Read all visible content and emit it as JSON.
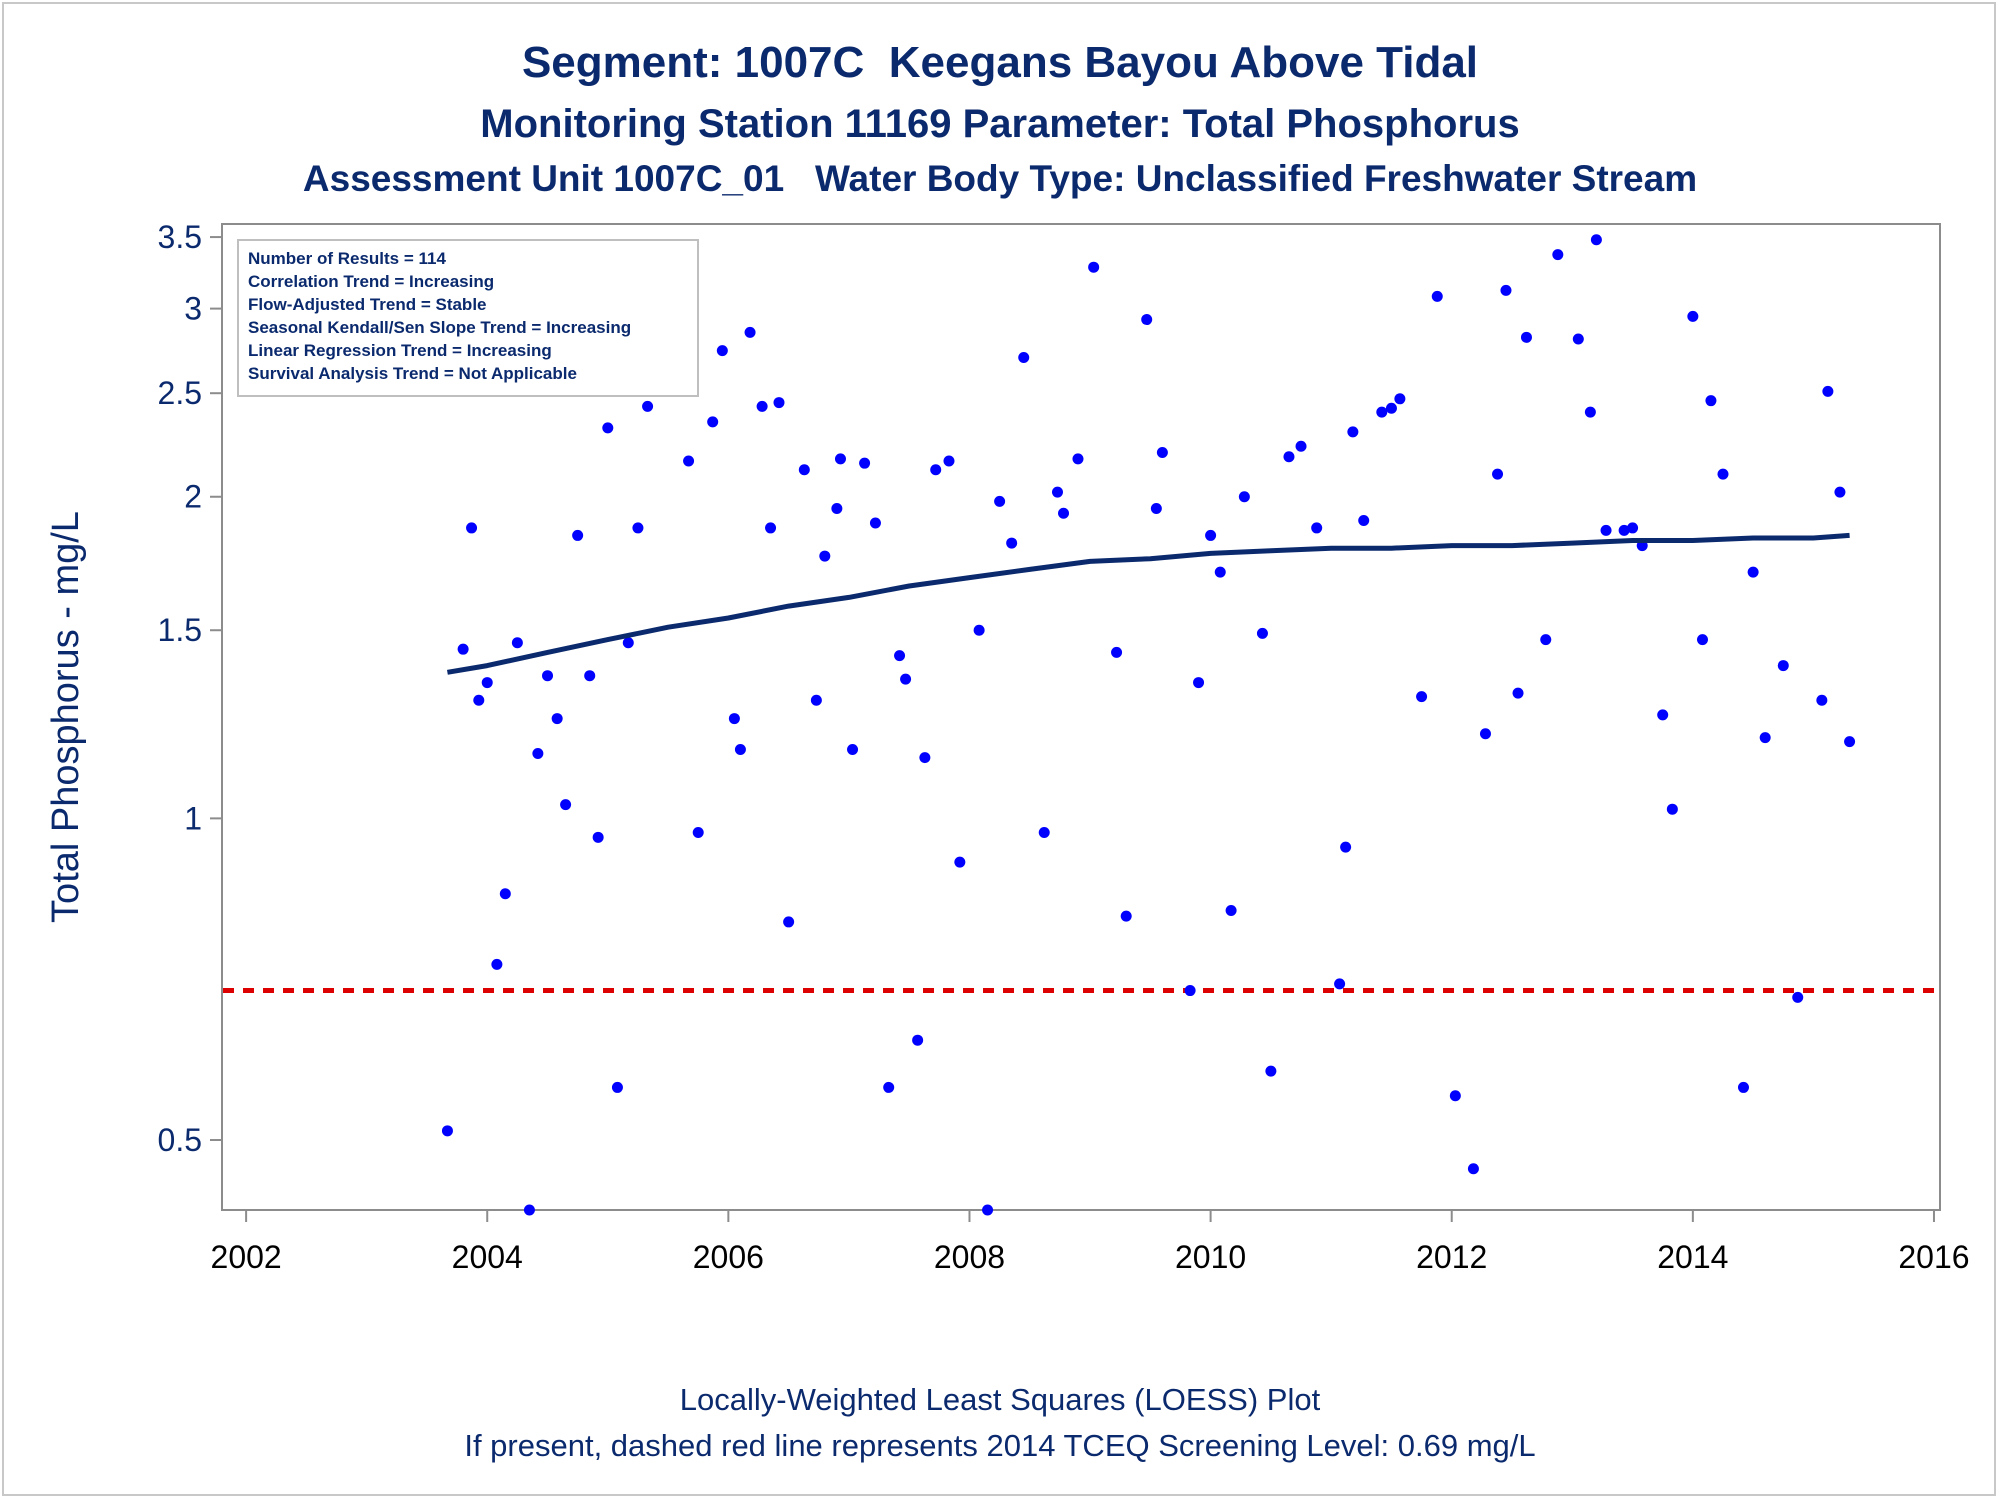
{
  "chart_data": {
    "type": "scatter",
    "title": "Segment: 1007C  Keegans Bayou Above Tidal",
    "subtitles": [
      "Monitoring Station 11169 Parameter: Total Phosphorus",
      "Assessment Unit 1007C_01   Water Body Type: Unclassified Freshwater Stream"
    ],
    "ylabel": "Total Phosphorus - mg/L",
    "xlabel": "",
    "y_scale": "log",
    "ylim": [
      0.43,
      3.6
    ],
    "xlim": [
      2001.8,
      2016.05
    ],
    "y_ticks": [
      0.5,
      1,
      1.5,
      2,
      2.5,
      3,
      3.5
    ],
    "y_tick_labels": [
      "0.5",
      "1",
      "1.5",
      "2",
      "2.5",
      "3",
      "3.5"
    ],
    "x_ticks": [
      2002,
      2004,
      2006,
      2008,
      2010,
      2012,
      2014,
      2016
    ],
    "x_tick_labels": [
      "2002",
      "2004",
      "2006",
      "2008",
      "2010",
      "2012",
      "2014",
      "2016"
    ],
    "grid": false,
    "statistics_box": {
      "placement": "top-left",
      "lines": [
        "Number of Results = 114",
        "Correlation Trend = Increasing",
        "Flow-Adjusted Trend = Stable",
        "Seasonal Kendall/Sen Slope Trend = Increasing",
        "Linear Regression Trend = Increasing",
        "Survival Analysis Trend = Not Applicable"
      ]
    },
    "series": [
      {
        "type": "scatter",
        "color": "#0000ff",
        "points": [
          [
            2003.67,
            0.51
          ],
          [
            2003.8,
            1.44
          ],
          [
            2003.87,
            1.87
          ],
          [
            2003.93,
            1.29
          ],
          [
            2004.0,
            1.34
          ],
          [
            2004.08,
            0.73
          ],
          [
            2004.15,
            0.85
          ],
          [
            2004.25,
            1.46
          ],
          [
            2004.35,
            0.43
          ],
          [
            2004.42,
            1.15
          ],
          [
            2004.5,
            1.36
          ],
          [
            2004.58,
            1.24
          ],
          [
            2004.65,
            1.03
          ],
          [
            2004.75,
            1.84
          ],
          [
            2004.85,
            1.36
          ],
          [
            2004.92,
            0.96
          ],
          [
            2005.0,
            2.32
          ],
          [
            2005.08,
            0.56
          ],
          [
            2005.17,
            1.46
          ],
          [
            2005.25,
            1.87
          ],
          [
            2005.33,
            2.43
          ],
          [
            2005.67,
            2.16
          ],
          [
            2005.75,
            0.97
          ],
          [
            2005.87,
            2.35
          ],
          [
            2005.95,
            2.74
          ],
          [
            2006.05,
            1.24
          ],
          [
            2006.1,
            1.16
          ],
          [
            2006.18,
            2.85
          ],
          [
            2006.28,
            2.43
          ],
          [
            2006.35,
            1.87
          ],
          [
            2006.42,
            2.45
          ],
          [
            2006.5,
            0.8
          ],
          [
            2006.63,
            2.12
          ],
          [
            2006.73,
            1.29
          ],
          [
            2006.8,
            1.76
          ],
          [
            2006.9,
            1.95
          ],
          [
            2006.93,
            2.17
          ],
          [
            2007.03,
            1.16
          ],
          [
            2007.13,
            2.15
          ],
          [
            2007.22,
            1.89
          ],
          [
            2007.33,
            0.56
          ],
          [
            2007.42,
            1.42
          ],
          [
            2007.47,
            1.35
          ],
          [
            2007.57,
            0.62
          ],
          [
            2007.63,
            1.14
          ],
          [
            2007.72,
            2.12
          ],
          [
            2007.83,
            2.16
          ],
          [
            2007.92,
            0.91
          ],
          [
            2008.08,
            1.5
          ],
          [
            2008.15,
            0.43
          ],
          [
            2008.25,
            1.98
          ],
          [
            2008.35,
            1.81
          ],
          [
            2008.45,
            2.7
          ],
          [
            2008.62,
            0.97
          ],
          [
            2008.73,
            2.02
          ],
          [
            2008.78,
            1.93
          ],
          [
            2008.9,
            2.17
          ],
          [
            2009.03,
            3.28
          ],
          [
            2009.22,
            1.43
          ],
          [
            2009.3,
            0.81
          ],
          [
            2009.47,
            2.93
          ],
          [
            2009.55,
            1.95
          ],
          [
            2009.6,
            2.2
          ],
          [
            2009.83,
            0.69
          ],
          [
            2009.9,
            1.34
          ],
          [
            2010.0,
            1.84
          ],
          [
            2010.08,
            1.7
          ],
          [
            2010.17,
            0.82
          ],
          [
            2010.28,
            2.0
          ],
          [
            2010.43,
            1.49
          ],
          [
            2010.5,
            0.58
          ],
          [
            2010.65,
            2.18
          ],
          [
            2010.75,
            2.23
          ],
          [
            2010.88,
            1.87
          ],
          [
            2011.07,
            0.7
          ],
          [
            2011.12,
            0.94
          ],
          [
            2011.18,
            2.3
          ],
          [
            2011.27,
            1.9
          ],
          [
            2011.42,
            2.4
          ],
          [
            2011.5,
            2.42
          ],
          [
            2011.57,
            2.47
          ],
          [
            2011.75,
            1.3
          ],
          [
            2011.88,
            3.08
          ],
          [
            2012.03,
            0.55
          ],
          [
            2012.18,
            0.47
          ],
          [
            2012.28,
            1.2
          ],
          [
            2012.38,
            2.1
          ],
          [
            2012.45,
            3.12
          ],
          [
            2012.55,
            1.31
          ],
          [
            2012.62,
            2.82
          ],
          [
            2012.78,
            1.47
          ],
          [
            2012.88,
            3.37
          ],
          [
            2013.05,
            2.81
          ],
          [
            2013.15,
            2.4
          ],
          [
            2013.2,
            3.48
          ],
          [
            2013.28,
            1.86
          ],
          [
            2013.43,
            1.86
          ],
          [
            2013.5,
            1.87
          ],
          [
            2013.58,
            1.8
          ],
          [
            2013.75,
            1.25
          ],
          [
            2013.83,
            1.02
          ],
          [
            2014.0,
            2.95
          ],
          [
            2014.08,
            1.47
          ],
          [
            2014.15,
            2.46
          ],
          [
            2014.25,
            2.1
          ],
          [
            2014.42,
            0.56
          ],
          [
            2014.5,
            1.7
          ],
          [
            2014.6,
            1.19
          ],
          [
            2014.75,
            1.39
          ],
          [
            2014.87,
            0.68
          ],
          [
            2015.07,
            1.29
          ],
          [
            2015.12,
            2.51
          ],
          [
            2015.22,
            2.02
          ],
          [
            2015.3,
            1.18
          ]
        ]
      },
      {
        "type": "line",
        "color": "#0b2a6e",
        "points": [
          [
            2003.67,
            1.37
          ],
          [
            2004.0,
            1.39
          ],
          [
            2004.5,
            1.43
          ],
          [
            2005.0,
            1.47
          ],
          [
            2005.5,
            1.51
          ],
          [
            2006.0,
            1.54
          ],
          [
            2006.5,
            1.58
          ],
          [
            2007.0,
            1.61
          ],
          [
            2007.5,
            1.65
          ],
          [
            2008.0,
            1.68
          ],
          [
            2008.5,
            1.71
          ],
          [
            2009.0,
            1.74
          ],
          [
            2009.5,
            1.75
          ],
          [
            2010.0,
            1.77
          ],
          [
            2010.5,
            1.78
          ],
          [
            2011.0,
            1.79
          ],
          [
            2011.5,
            1.79
          ],
          [
            2012.0,
            1.8
          ],
          [
            2012.5,
            1.8
          ],
          [
            2013.0,
            1.81
          ],
          [
            2013.5,
            1.82
          ],
          [
            2014.0,
            1.82
          ],
          [
            2014.5,
            1.83
          ],
          [
            2015.0,
            1.83
          ],
          [
            2015.3,
            1.84
          ]
        ]
      },
      {
        "type": "reference_line",
        "color": "#dd0000",
        "style": "dashed",
        "y": 0.69
      }
    ]
  },
  "footnotes": [
    "Locally-Weighted Least Squares (LOESS) Plot",
    "If present, dashed red line represents 2014 TCEQ Screening Level: 0.69 mg/L"
  ]
}
